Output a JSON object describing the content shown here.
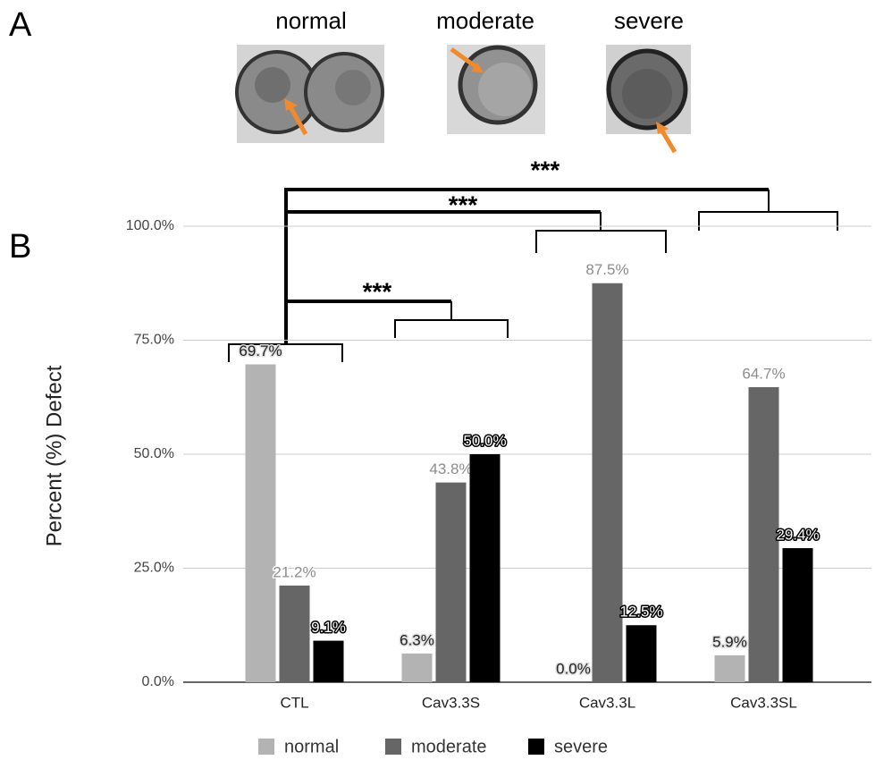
{
  "panels": {
    "a": "A",
    "b": "B"
  },
  "image_labels": [
    "normal",
    "moderate",
    "severe"
  ],
  "chart_data": {
    "type": "bar",
    "y_label": "Percent (%) Defect",
    "annotations": [
      "***",
      "***",
      "***"
    ],
    "categories": [
      "CTL",
      "Cav3.3S",
      "Cav3.3L",
      "Cav3.3SL"
    ],
    "series": [
      {
        "name": "normal",
        "color": "#b3b3b3",
        "values": [
          69.7,
          6.3,
          0.0,
          5.9
        ],
        "value_labels": [
          "69.7%",
          "6.3%",
          "0.0%",
          "5.9%"
        ]
      },
      {
        "name": "moderate",
        "color": "#666666",
        "values": [
          21.2,
          43.8,
          87.5,
          64.7
        ],
        "value_labels": [
          "21.2%",
          "43.8%",
          "87.5%",
          "64.7%"
        ]
      },
      {
        "name": "severe",
        "color": "#000000",
        "values": [
          9.1,
          50.0,
          12.5,
          29.4
        ],
        "value_labels": [
          "9.1%",
          "50.0%",
          "12.5%",
          "29.4%"
        ]
      }
    ],
    "ylim": [
      0,
      100
    ],
    "yticks": [
      {
        "value": 0,
        "label": "0.0%"
      },
      {
        "value": 25,
        "label": "25.0%"
      },
      {
        "value": 50,
        "label": "50.0%"
      },
      {
        "value": 75,
        "label": "75.0%"
      },
      {
        "value": 100,
        "label": "100.0%"
      }
    ],
    "grid": true,
    "legend": "bottom"
  }
}
